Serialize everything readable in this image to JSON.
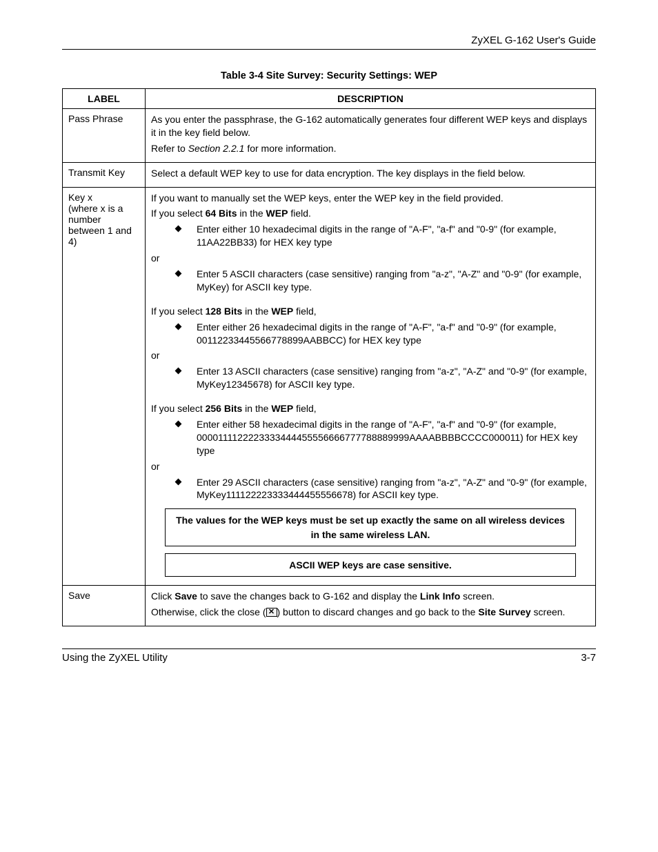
{
  "header": {
    "guide_title": "ZyXEL G-162 User's Guide"
  },
  "table_title": "Table 3-4 Site Survey: Security Settings: WEP",
  "columns": {
    "label": "LABEL",
    "description": "DESCRIPTION"
  },
  "rows": {
    "pass_phrase": {
      "label": "Pass Phrase",
      "line1": "As you enter the passphrase, the G-162 automatically generates four different WEP keys and displays it in the key field below.",
      "line2_pre": "Refer to ",
      "line2_section": "Section 2.2.1",
      "line2_post": " for more information."
    },
    "transmit_key": {
      "label": "Transmit Key",
      "desc": "Select a default WEP key to use for data encryption. The key displays in the field below."
    },
    "key_x": {
      "label": "Key x\n(where x is a number between 1 and 4)",
      "intro": "If you want to manually set the WEP keys, enter the WEP key in the field provided.",
      "sel64_pre": "If you select ",
      "sel64_bits": "64 Bits",
      "sel64_mid": " in the ",
      "sel64_wep": "WEP",
      "sel64_post": " field.",
      "bullet64_hex": "Enter either 10 hexadecimal digits in the range of \"A-F\", \"a-f\" and \"0-9\" (for example, 11AA22BB33) for HEX key type",
      "or": "or",
      "bullet64_ascii": "Enter 5 ASCII characters (case sensitive) ranging from \"a-z\", \"A-Z\" and \"0-9\" (for example, MyKey) for ASCII key type.",
      "sel128_pre": "If you select ",
      "sel128_bits": "128 Bits",
      "sel128_mid": " in the ",
      "sel128_wep": "WEP",
      "sel128_post": " field,",
      "bullet128_hex": "Enter either 26 hexadecimal digits in the range of \"A-F\", \"a-f\" and \"0-9\" (for example, 00112233445566778899AABBCC) for HEX key type",
      "bullet128_ascii": "Enter 13 ASCII characters (case sensitive) ranging from \"a-z\", \"A-Z\" and \"0-9\" (for example, MyKey12345678) for ASCII key type.",
      "sel256_pre": "If you select ",
      "sel256_bits": "256 Bits",
      "sel256_mid": " in the ",
      "sel256_wep": "WEP",
      "sel256_post": " field,",
      "bullet256_hex": "Enter either 58 hexadecimal digits in the range of \"A-F\", \"a-f\" and \"0-9\" (for example, 0000111122223333444455556666777788889999AAAABBBBCCCC000011) for HEX key type",
      "bullet256_ascii": "Enter 29 ASCII characters (case sensitive) ranging from \"a-z\", \"A-Z\" and \"0-9\" (for example, MyKey111122223333444455556678) for ASCII key type.",
      "note1": "The values for the WEP keys must be set up exactly the same on all wireless devices in the same wireless LAN.",
      "note2": "ASCII WEP keys are case sensitive."
    },
    "save": {
      "label": "Save",
      "line1_pre": "Click ",
      "line1_save": "Save",
      "line1_mid": " to save the changes back to G-162 and display the ",
      "line1_link": "Link Info",
      "line1_post": " screen.",
      "line2_pre": "Otherwise, click the close (",
      "line2_icon": "✕",
      "line2_mid": ") button to discard changes and go back to the ",
      "line2_site": "Site Survey",
      "line2_post": " screen."
    }
  },
  "footer": {
    "left": "Using the ZyXEL Utility",
    "right": "3-7"
  },
  "colors": {
    "text": "#000000",
    "background": "#ffffff",
    "border": "#000000"
  },
  "font_sizes": {
    "header": 15,
    "title": 14.5,
    "body": 14,
    "footer": 15
  }
}
